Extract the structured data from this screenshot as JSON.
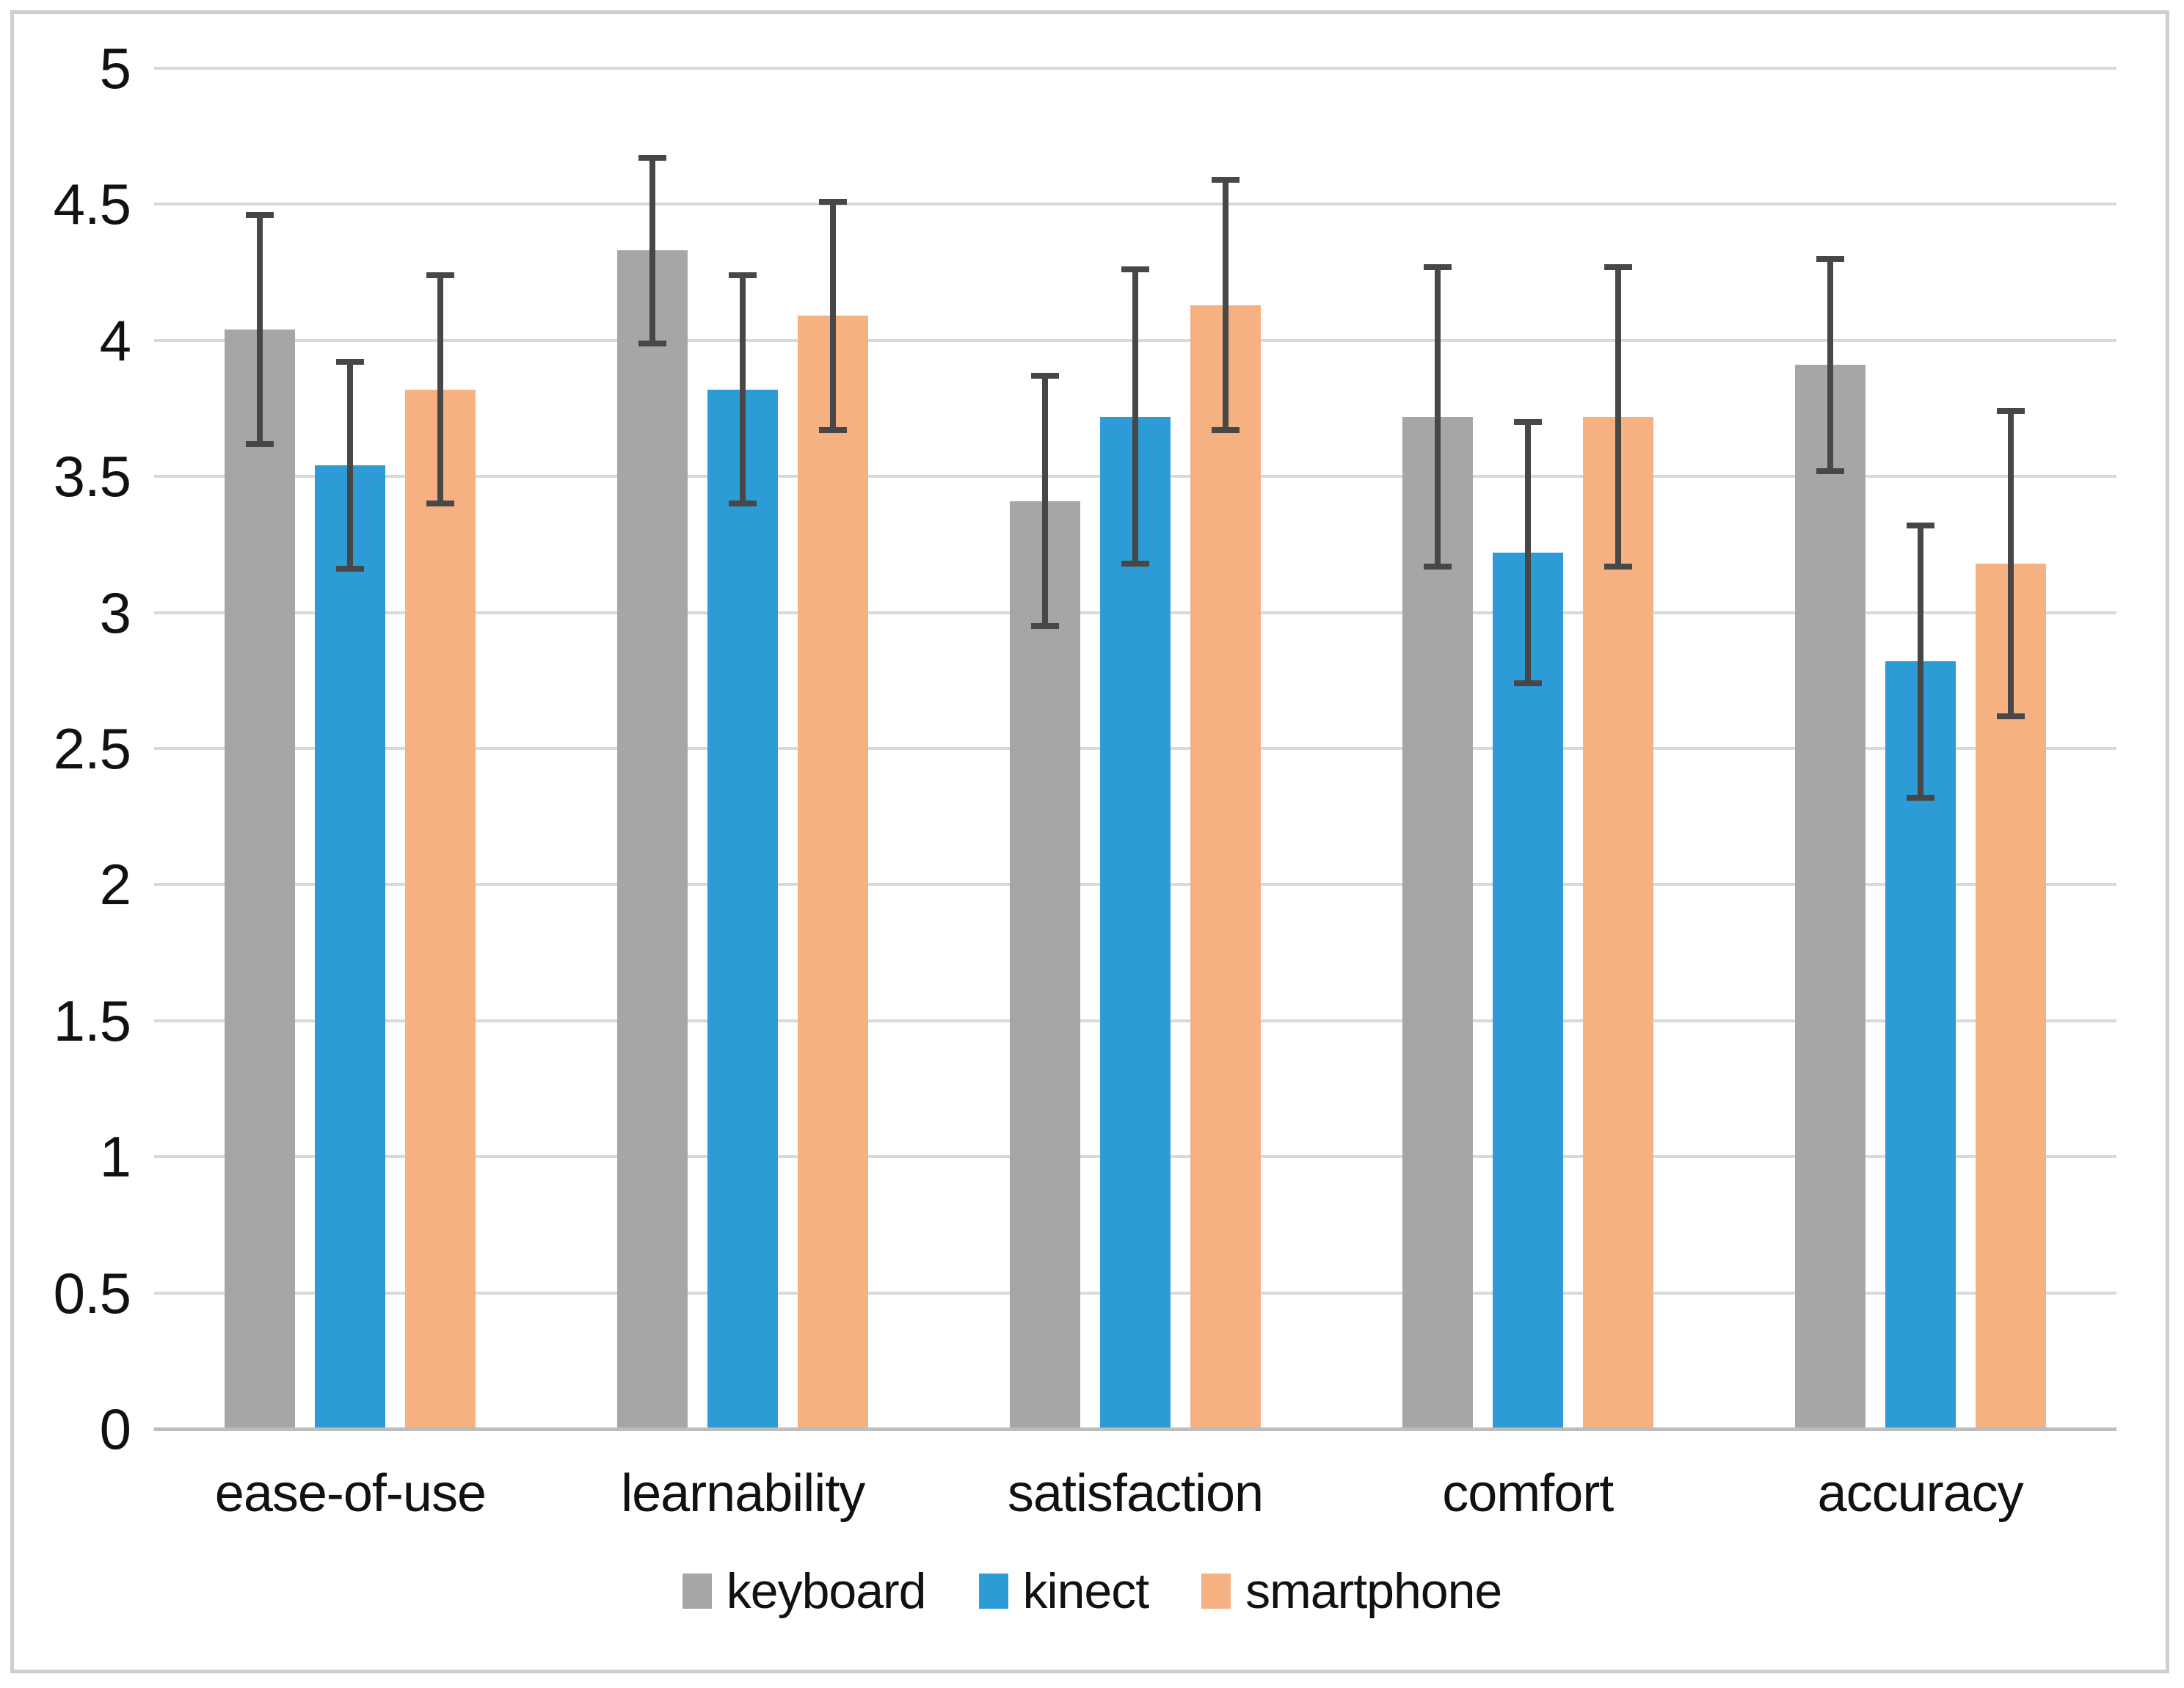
{
  "chart_data": {
    "type": "bar",
    "title": "",
    "xlabel": "",
    "ylabel": "",
    "categories": [
      "ease-of-use",
      "learnability",
      "satisfaction",
      "comfort",
      "accuracy"
    ],
    "series": [
      {
        "name": "keyboard",
        "color": "#a6a6a6",
        "values": [
          4.04,
          4.33,
          3.41,
          3.72,
          3.91
        ],
        "errors": [
          0.42,
          0.34,
          0.46,
          0.55,
          0.39
        ]
      },
      {
        "name": "kinect",
        "color": "#2d9bd5",
        "values": [
          3.54,
          3.82,
          3.72,
          3.22,
          2.82
        ],
        "errors": [
          0.38,
          0.42,
          0.54,
          0.48,
          0.5
        ]
      },
      {
        "name": "smartphone",
        "color": "#f6b183",
        "values": [
          3.82,
          4.09,
          4.13,
          3.72,
          3.18
        ],
        "errors": [
          0.42,
          0.42,
          0.46,
          0.55,
          0.56
        ]
      }
    ],
    "ylim": [
      0,
      5
    ],
    "y_ticks": [
      0,
      0.5,
      1,
      1.5,
      2,
      2.5,
      3,
      3.5,
      4,
      4.5,
      5
    ],
    "grid": true,
    "error_bars": true,
    "legend_position": "bottom"
  },
  "legend": {
    "items": [
      {
        "label": "keyboard",
        "color": "#a6a6a6"
      },
      {
        "label": "kinect",
        "color": "#2d9bd5"
      },
      {
        "label": "smartphone",
        "color": "#f6b183"
      }
    ]
  },
  "style": {
    "gridline_color": "#d9d9d9",
    "axisline_color": "#bdbdbd",
    "error_bar_color": "#474747",
    "border_color": "#cfcfcf",
    "text_color": "#111111",
    "background": "#ffffff"
  }
}
